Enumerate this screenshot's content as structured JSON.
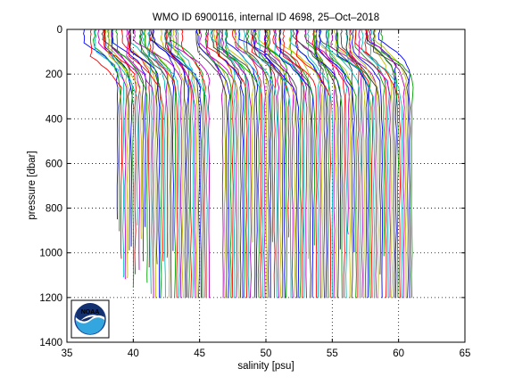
{
  "chart_data": {
    "type": "line",
    "title": "WMO ID 6900116, internal ID 4698, 25–Oct–2018",
    "xlabel": "salinity [psu]",
    "ylabel": "pressure [dbar]",
    "xlim": [
      35,
      65
    ],
    "ylim": [
      0,
      1400
    ],
    "y_reversed": true,
    "grid": true,
    "grid_style": "dotted",
    "x_ticks": [
      35,
      40,
      45,
      50,
      55,
      60,
      65
    ],
    "y_ticks": [
      0,
      200,
      400,
      600,
      800,
      1000,
      1200,
      1400
    ],
    "x_tick_labels": [
      "35",
      "40",
      "45",
      "50",
      "55",
      "60",
      "65"
    ],
    "y_tick_labels": [
      "0",
      "200",
      "400",
      "600",
      "800",
      "1000",
      "1200",
      "1400"
    ],
    "profile_offset_psu": 0.15,
    "profile_count": 150,
    "first_profile_deep_salinity": 38.8,
    "profile_colors": [
      "#0000ff",
      "#00a000",
      "#ff0000",
      "#00bfbf",
      "#bf00bf",
      "#bfbf00",
      "#404040"
    ],
    "logo": "NOAA"
  }
}
